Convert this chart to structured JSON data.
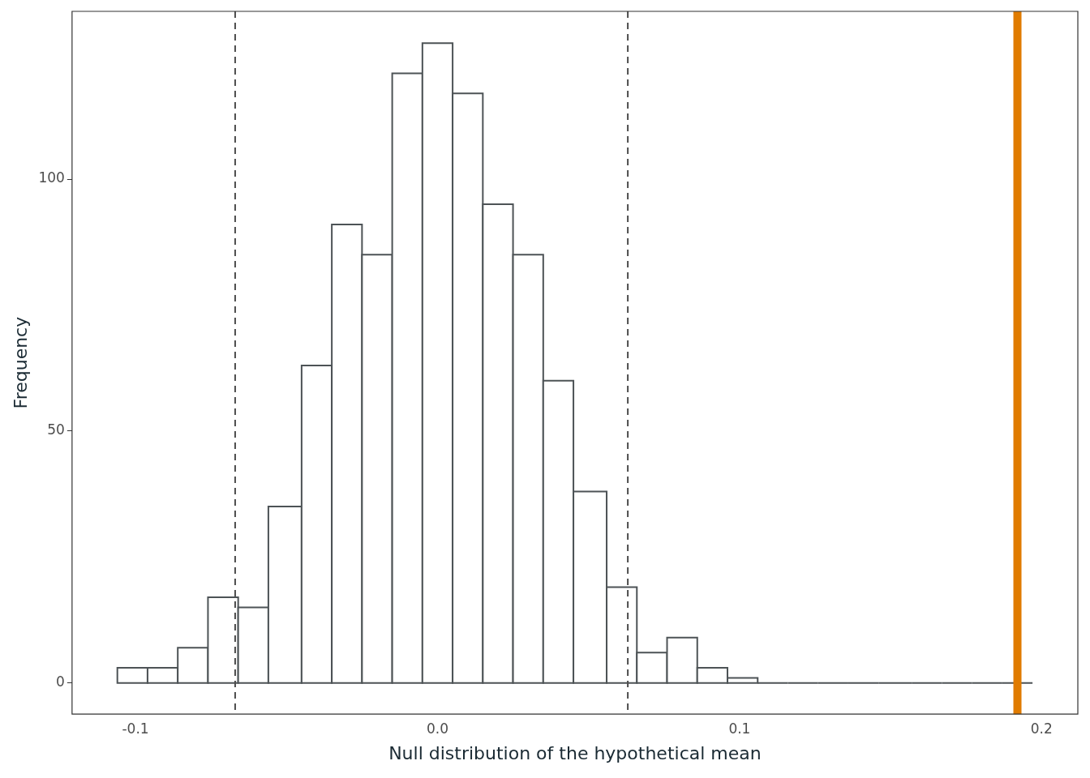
{
  "chart_data": {
    "type": "histogram",
    "xlabel": "Null distribution of the hypothetical mean",
    "ylabel": "Frequency",
    "bins": [
      -0.106,
      -0.096,
      -0.086,
      -0.076,
      -0.066,
      -0.056,
      -0.045,
      -0.035,
      -0.025,
      -0.015,
      -0.005,
      0.005,
      0.015,
      0.025,
      0.035,
      0.045,
      0.056,
      0.066,
      0.076,
      0.086,
      0.096,
      0.106,
      0.116,
      0.126,
      0.136,
      0.146,
      0.157,
      0.167,
      0.177,
      0.187,
      0.197
    ],
    "values": [
      3,
      3,
      7,
      17,
      15,
      35,
      63,
      91,
      85,
      121,
      127,
      117,
      95,
      85,
      60,
      38,
      19,
      6,
      9,
      3,
      1,
      0,
      0,
      0,
      0,
      0,
      0,
      0,
      0,
      0
    ],
    "color": "#4d5356",
    "xlim": [
      -0.121,
      0.212
    ],
    "ylim": [
      -6.2,
      133.3
    ],
    "xticks": [
      -0.1,
      {
        "value": 0,
        "label": "0.0"
      },
      0.1,
      0.2
    ],
    "yticks": [
      0,
      50,
      100
    ],
    "ref_lines": [
      {
        "axis": "x",
        "value": -0.067,
        "color": "#4d4d4d",
        "line_style": "dashed"
      },
      {
        "axis": "x",
        "value": 0.063,
        "color": "#4d4d4d",
        "line_style": "dashed"
      },
      {
        "axis": "x",
        "value": 0.192,
        "color": "#e07b00",
        "line_style": "solid"
      }
    ],
    "grid": false,
    "legend": false
  }
}
